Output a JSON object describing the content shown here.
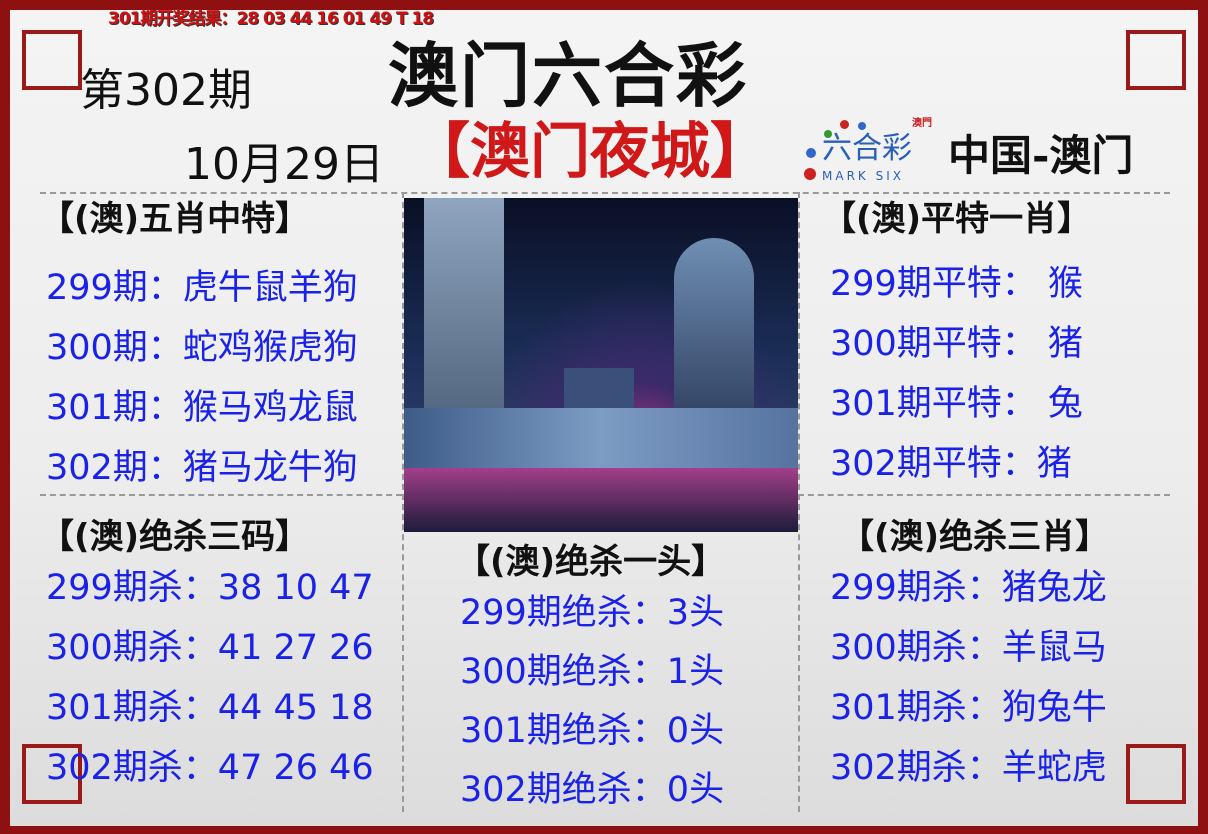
{
  "top_result": "301期开奖结果：28 03 44 16 01 49 T 18",
  "title": "澳门六合彩",
  "subtitle": "【澳门夜城】",
  "issue": "第302期",
  "date": "10月29日",
  "logo": {
    "small": "澳門",
    "main": "六合彩",
    "en": "MARK SIX"
  },
  "region": "中国-澳门",
  "colors": {
    "frame": "#8f1010",
    "text_blue": "#1a22e8",
    "subtitle_red": "#d01818"
  },
  "panels": {
    "five": {
      "title": "【(澳)五肖中特】",
      "lines": [
        "299期：虎牛鼠羊狗",
        "300期：蛇鸡猴虎狗",
        "301期：猴马鸡龙鼠",
        "302期：猪马龙牛狗"
      ]
    },
    "flat": {
      "title": "【(澳)平特一肖】",
      "lines": [
        "299期平特： 猴",
        "300期平特： 猪",
        "301期平特： 兔",
        "302期平特：猪"
      ]
    },
    "kill3": {
      "title": "【(澳)绝杀三码】",
      "lines": [
        "299期杀：38 10 47",
        "300期杀：41 27 26",
        "301期杀：44 45 18",
        "302期杀：47 26 46"
      ]
    },
    "head": {
      "title": "【(澳)绝杀一头】",
      "lines": [
        "299期绝杀：3头",
        "300期绝杀：1头",
        "301期绝杀：0头",
        "302期绝杀：0头"
      ]
    },
    "kill3z": {
      "title": "【(澳)绝杀三肖】",
      "lines": [
        "299期杀：猪兔龙",
        "300期杀：羊鼠马",
        "301期杀：狗兔牛",
        "302期杀：羊蛇虎"
      ]
    }
  }
}
